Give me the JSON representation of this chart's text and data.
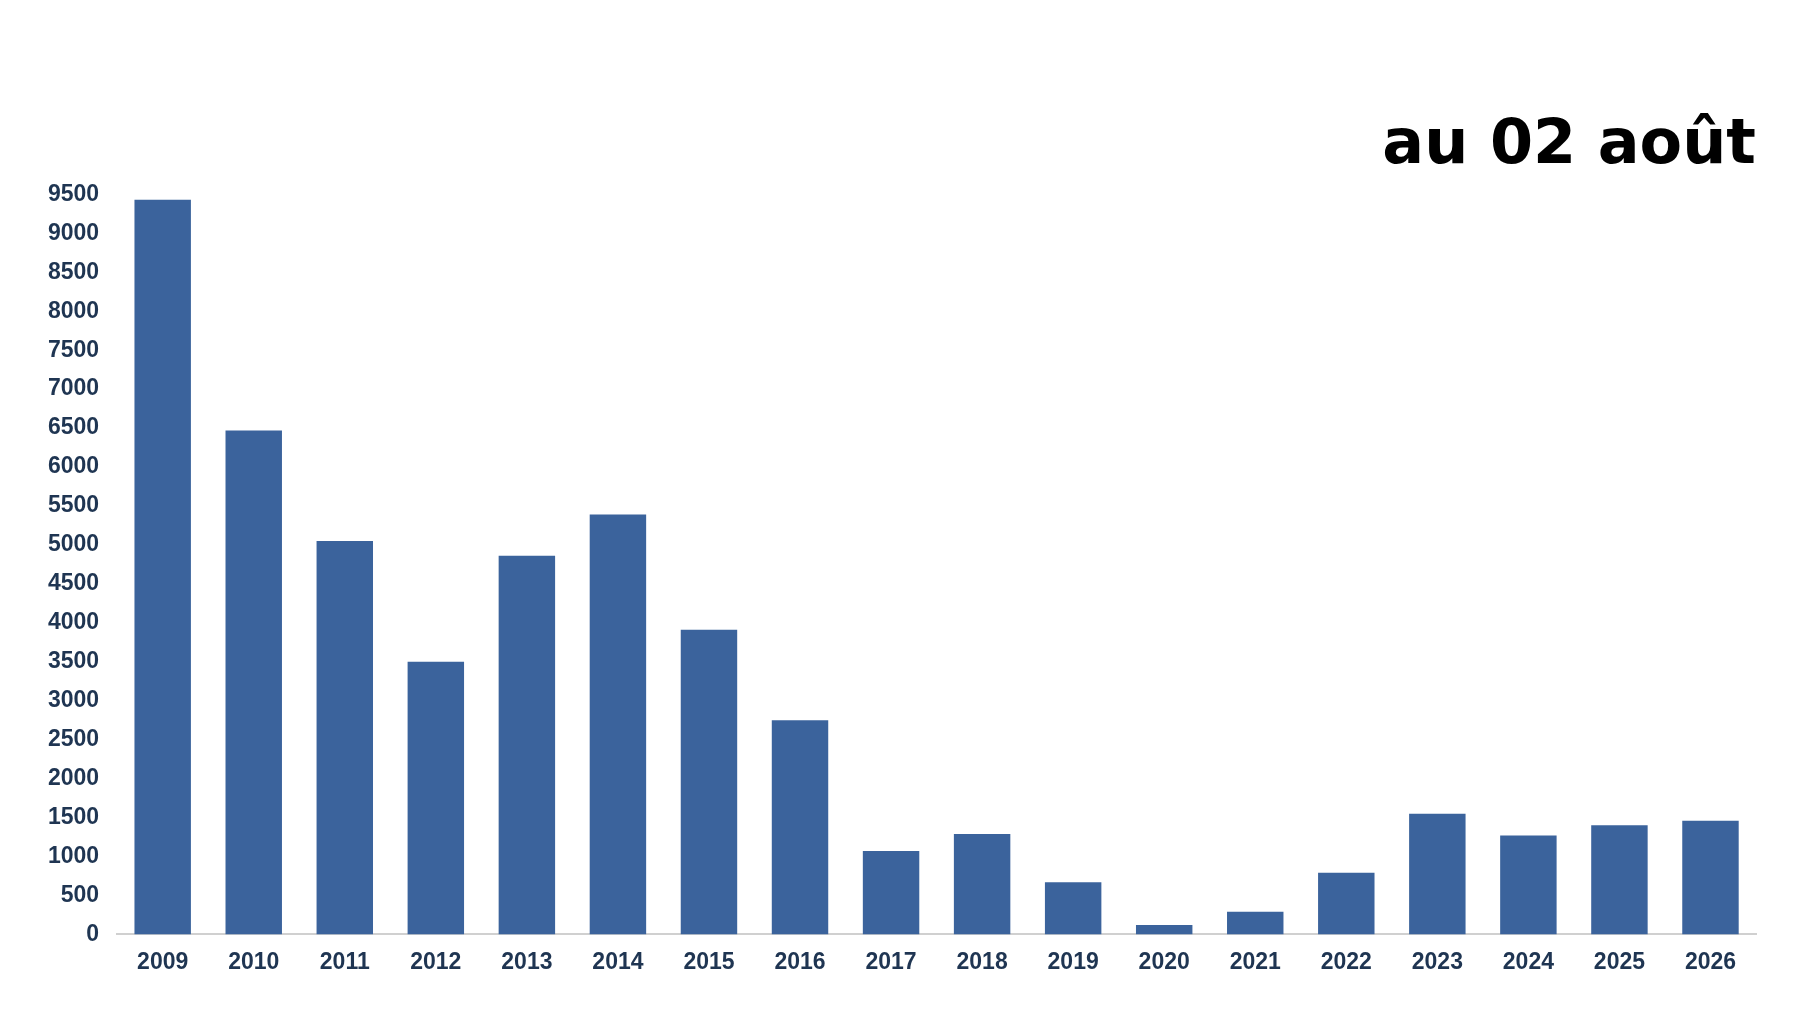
{
  "chart_data": {
    "type": "bar",
    "title": "au 02 août",
    "categories": [
      "2009",
      "2010",
      "2011",
      "2012",
      "2013",
      "2014",
      "2015",
      "2016",
      "2017",
      "2018",
      "2019",
      "2020",
      "2021",
      "2022",
      "2023",
      "2024",
      "2025",
      "2026"
    ],
    "values": [
      9430,
      6470,
      5050,
      3500,
      4860,
      5390,
      3910,
      2750,
      1070,
      1290,
      670,
      120,
      290,
      790,
      1550,
      1270,
      1400,
      1460
    ],
    "color": "#3b639c",
    "ylim": [
      0,
      9500
    ],
    "yticks": [
      0,
      500,
      1000,
      1500,
      2000,
      2500,
      3000,
      3500,
      4000,
      4500,
      5000,
      5500,
      6000,
      6500,
      7000,
      7500,
      8000,
      8500,
      9000,
      9500
    ],
    "grid": false,
    "legend": false
  }
}
